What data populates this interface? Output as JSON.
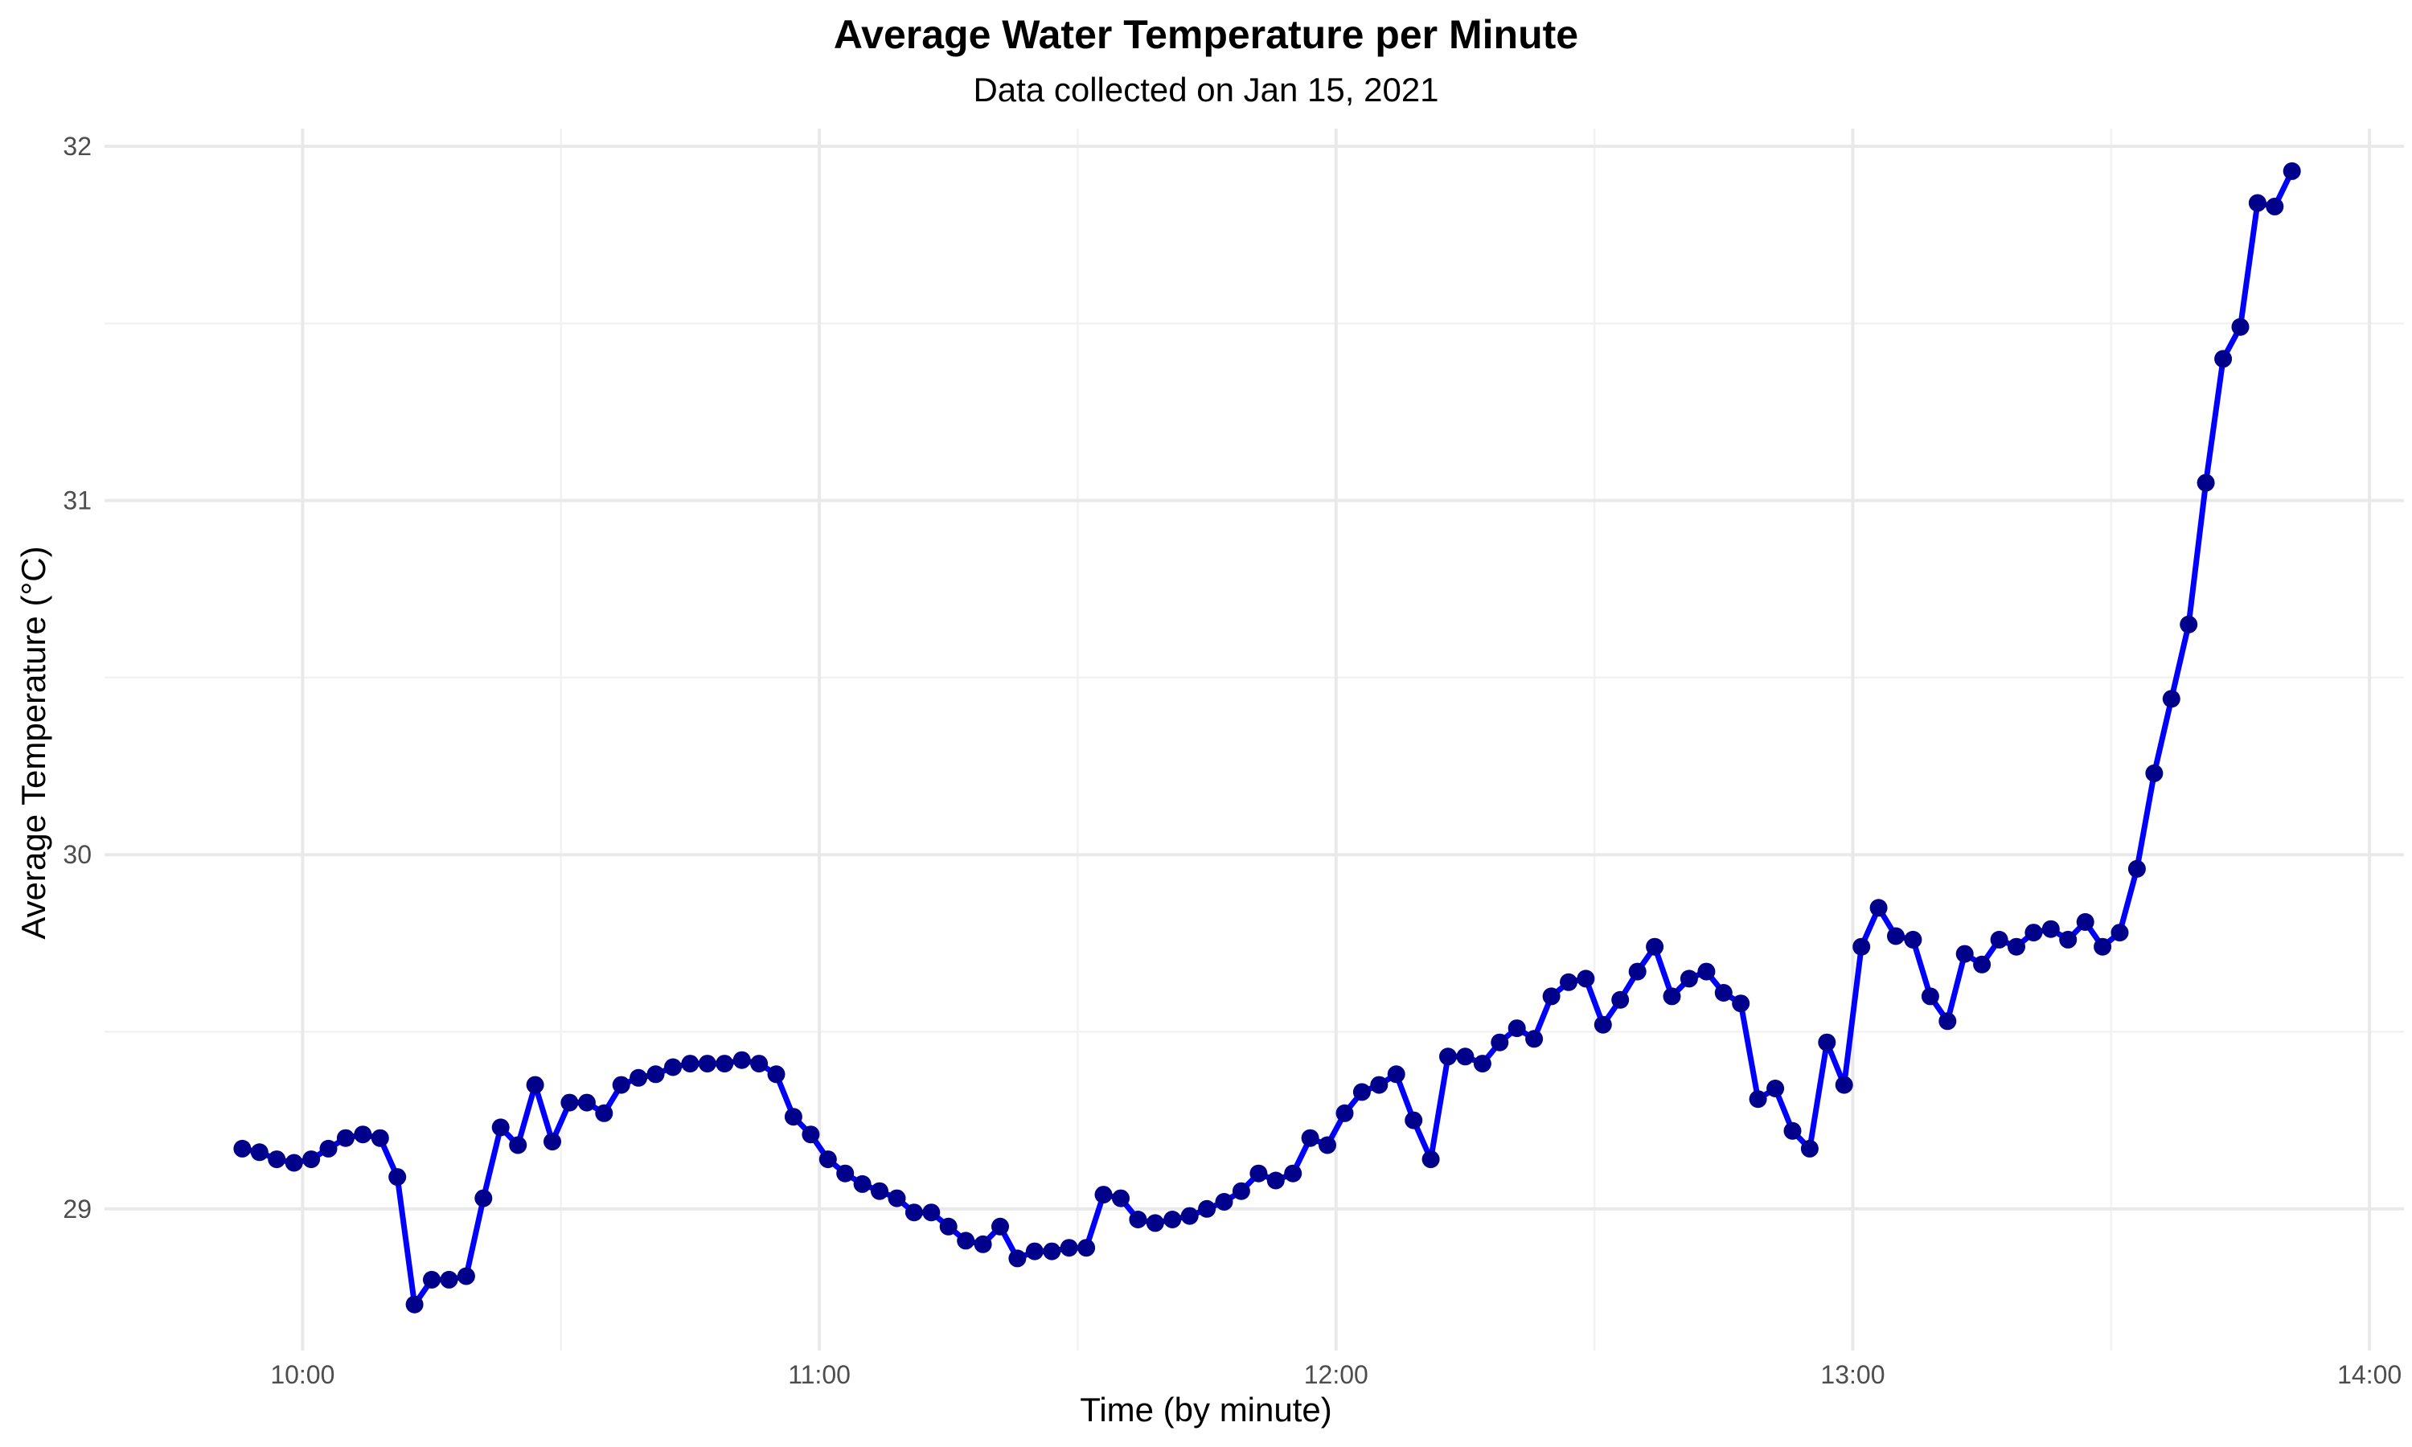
{
  "chart_data": {
    "type": "line",
    "title": "Average Water Temperature per Minute",
    "subtitle": "Data collected on Jan 15, 2021",
    "xlabel": "Time (by minute)",
    "ylabel": "Average Temperature (°C)",
    "x_ticks": [
      "10:00",
      "11:00",
      "12:00",
      "13:00",
      "14:00"
    ],
    "y_ticks": [
      29,
      30,
      31,
      32
    ],
    "xlim": [
      "09:37",
      "14:04"
    ],
    "ylim": [
      28.6,
      32.05
    ],
    "grid": true,
    "colors": {
      "line": "#0000ff",
      "point": "#00008b"
    },
    "series": [
      {
        "x": [
          "09:53",
          "09:55",
          "09:57",
          "09:59",
          "10:01",
          "10:03",
          "10:05",
          "10:07",
          "10:09",
          "10:11",
          "10:13",
          "10:15",
          "10:17",
          "10:19",
          "10:21",
          "10:23",
          "10:25",
          "10:27",
          "10:29",
          "10:31",
          "10:33",
          "10:35",
          "10:37",
          "10:39",
          "10:41",
          "10:43",
          "10:45",
          "10:47",
          "10:49",
          "10:51",
          "10:53",
          "10:55",
          "10:57",
          "10:59",
          "11:01",
          "11:03",
          "11:05",
          "11:07",
          "11:09",
          "11:11",
          "11:13",
          "11:15",
          "11:17",
          "11:19",
          "11:21",
          "11:23",
          "11:25",
          "11:27",
          "11:29",
          "11:31",
          "11:33",
          "11:35",
          "11:37",
          "11:39",
          "11:41",
          "11:43",
          "11:45",
          "11:47",
          "11:49",
          "11:51",
          "11:53",
          "11:55",
          "11:57",
          "11:59",
          "12:01",
          "12:03",
          "12:05",
          "12:07",
          "12:09",
          "12:11",
          "12:13",
          "12:15",
          "12:17",
          "12:19",
          "12:21",
          "12:23",
          "12:25",
          "12:27",
          "12:29",
          "12:31",
          "12:33",
          "12:35",
          "12:37",
          "12:39",
          "12:41",
          "12:43",
          "12:45",
          "12:47",
          "12:49",
          "12:51",
          "12:53",
          "12:55",
          "12:57",
          "12:59",
          "13:01",
          "13:03",
          "13:05",
          "13:07",
          "13:09",
          "13:11",
          "13:13",
          "13:15",
          "13:17",
          "13:19",
          "13:21",
          "13:23",
          "13:25",
          "13:27",
          "13:29",
          "13:31",
          "13:33",
          "13:35",
          "13:37",
          "13:39",
          "13:41",
          "13:43",
          "13:45",
          "13:47",
          "13:49",
          "13:51"
        ],
        "y": [
          29.17,
          29.16,
          29.14,
          29.13,
          29.14,
          29.17,
          29.2,
          29.21,
          29.2,
          29.09,
          28.73,
          28.8,
          28.8,
          28.81,
          29.03,
          29.23,
          29.18,
          29.35,
          29.19,
          29.3,
          29.3,
          29.27,
          29.35,
          29.37,
          29.38,
          29.4,
          29.41,
          29.41,
          29.41,
          29.42,
          29.41,
          29.38,
          29.26,
          29.21,
          29.14,
          29.1,
          29.07,
          29.05,
          29.03,
          28.99,
          28.99,
          28.95,
          28.91,
          28.9,
          28.95,
          28.86,
          28.88,
          28.88,
          28.89,
          28.89,
          29.04,
          29.03,
          28.97,
          28.96,
          28.97,
          28.98,
          29.0,
          29.02,
          29.05,
          29.1,
          29.08,
          29.1,
          29.2,
          29.18,
          29.27,
          29.33,
          29.35,
          29.38,
          29.25,
          29.14,
          29.43,
          29.43,
          29.41,
          29.47,
          29.51,
          29.48,
          29.6,
          29.64,
          29.65,
          29.52,
          29.59,
          29.67,
          29.74,
          29.6,
          29.65,
          29.67,
          29.61,
          29.58,
          29.31,
          29.34,
          29.22,
          29.17,
          29.47,
          29.35,
          29.74,
          29.85,
          29.77,
          29.76,
          29.6,
          29.53,
          29.72,
          29.69,
          29.76,
          29.74,
          29.78,
          29.79,
          29.76,
          29.81,
          29.74,
          29.78,
          29.96,
          30.23,
          30.44,
          30.65,
          31.05,
          31.4,
          31.49,
          31.84,
          31.83,
          31.93
        ]
      }
    ]
  }
}
